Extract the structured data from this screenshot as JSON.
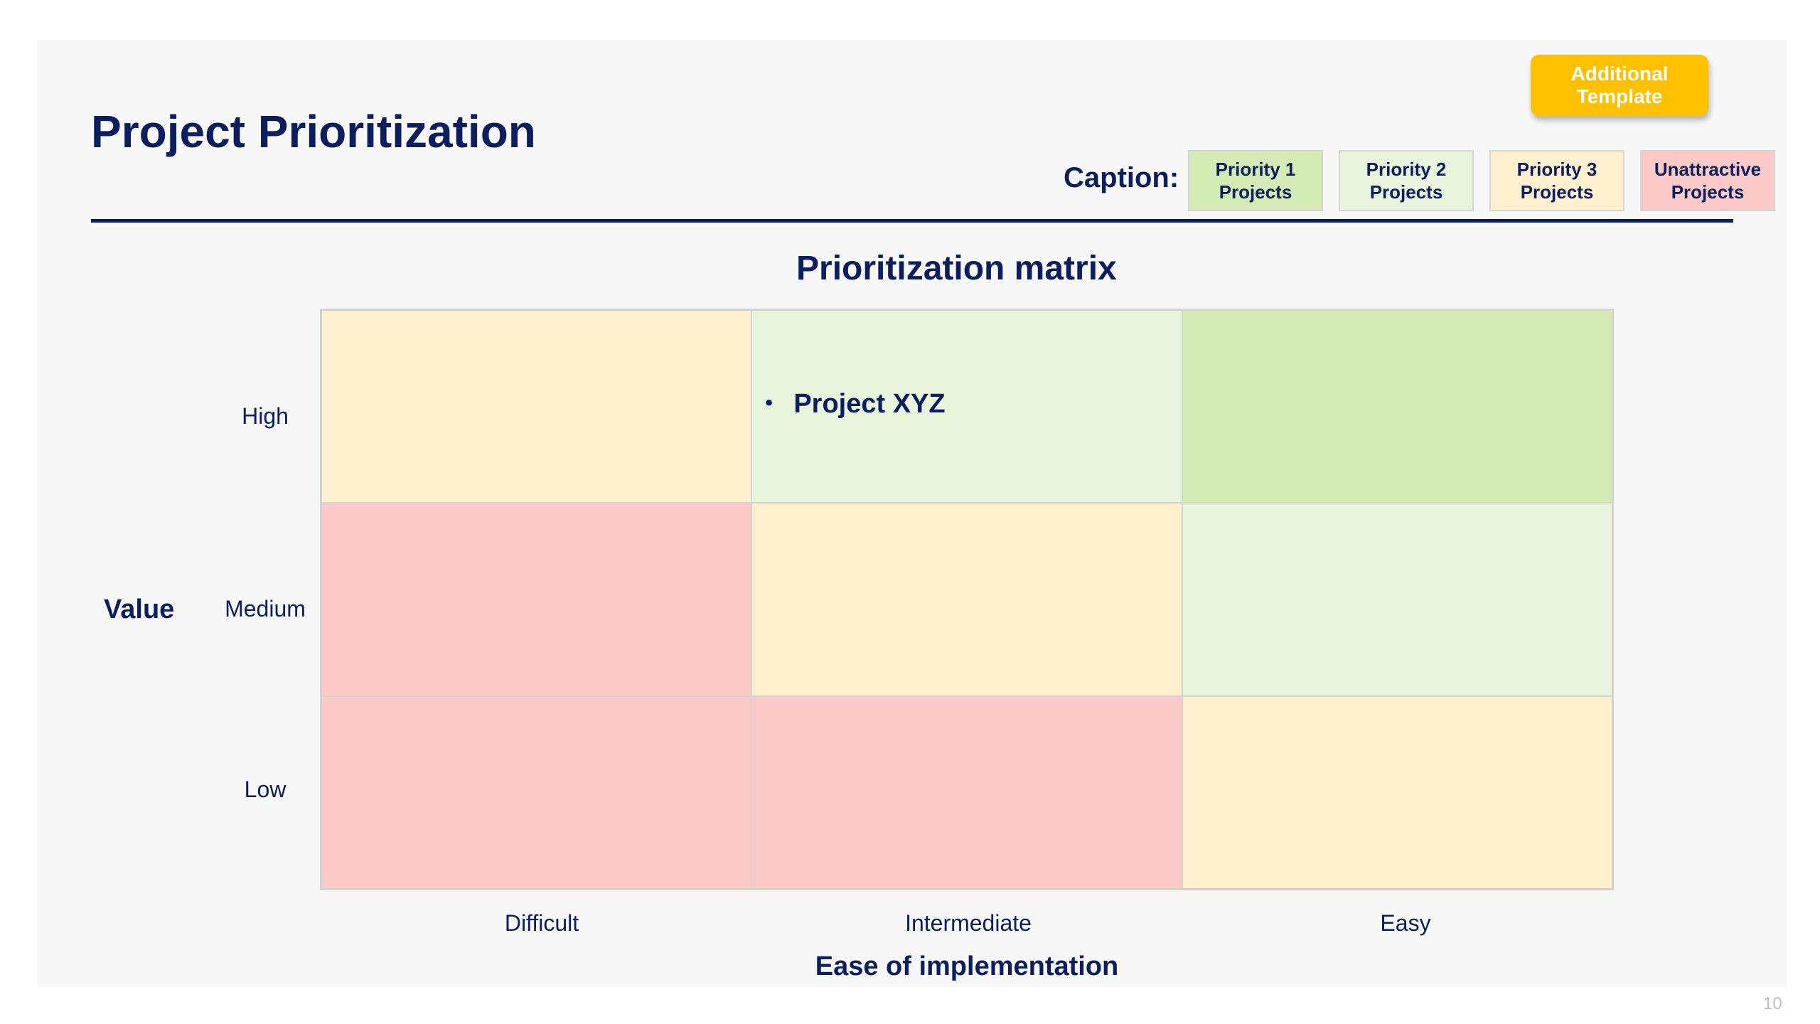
{
  "header": {
    "title": "Project Prioritization",
    "additional_template_label": "Additional Template"
  },
  "caption": {
    "label": "Caption:",
    "items": [
      {
        "label": "Priority 1\nProjects",
        "color": "#d4ebb5"
      },
      {
        "label": "Priority 2\nProjects",
        "color": "#e8f4dc"
      },
      {
        "label": "Priority 3\nProjects",
        "color": "#fef0cf"
      },
      {
        "label": "Unattractive\nProjects",
        "color": "#fcc9c9"
      }
    ]
  },
  "matrix": {
    "title": "Prioritization matrix",
    "y_axis_title": "Value",
    "x_axis_title": "Ease of implementation",
    "rows": [
      "High",
      "Medium",
      "Low"
    ],
    "columns": [
      "Difficult",
      "Intermediate",
      "Easy"
    ],
    "cells": [
      [
        {
          "color": "#fef0cf",
          "items": []
        },
        {
          "color": "#e8f4dc",
          "items": [
            "Project XYZ"
          ]
        },
        {
          "color": "#d4ebb5",
          "items": []
        }
      ],
      [
        {
          "color": "#fcc9c9",
          "items": []
        },
        {
          "color": "#fef0cf",
          "items": []
        },
        {
          "color": "#e8f4dc",
          "items": []
        }
      ],
      [
        {
          "color": "#fcc9c9",
          "items": []
        },
        {
          "color": "#fcc9c9",
          "items": []
        },
        {
          "color": "#fef0cf",
          "items": []
        }
      ]
    ]
  },
  "footer": {
    "page_number": "10"
  }
}
